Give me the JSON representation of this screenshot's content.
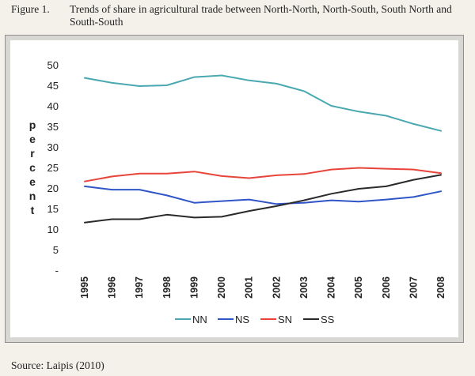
{
  "figure": {
    "label": "Figure 1.",
    "title": "Trends of share in agricultural trade between North-North, North-South, South North and South-South"
  },
  "source": "Source: Laipis (2010)",
  "chart_data": {
    "type": "line",
    "ylabel": "percent",
    "ylim": [
      0,
      50
    ],
    "yticks": [
      "-",
      "5",
      "10",
      "15",
      "20",
      "25",
      "30",
      "35",
      "40",
      "45",
      "50"
    ],
    "x": [
      "1995",
      "1996",
      "1997",
      "1998",
      "1999",
      "2000",
      "2001",
      "2002",
      "2003",
      "2004",
      "2005",
      "2006",
      "2007",
      "2008"
    ],
    "legend_position": "bottom",
    "series": [
      {
        "name": "NN",
        "color": "#4aa8b0",
        "values": [
          46.8,
          45.6,
          44.8,
          45.0,
          47.0,
          47.4,
          46.2,
          45.4,
          43.6,
          40.0,
          38.6,
          37.6,
          35.6,
          33.9
        ]
      },
      {
        "name": "NS",
        "color": "#2f55c8",
        "values": [
          20.4,
          19.6,
          19.6,
          18.2,
          16.4,
          16.8,
          17.2,
          16.1,
          16.4,
          17.0,
          16.7,
          17.2,
          17.8,
          19.2
        ]
      },
      {
        "name": "SN",
        "color": "#e8453a",
        "values": [
          21.6,
          22.8,
          23.5,
          23.5,
          24.0,
          22.9,
          22.4,
          23.1,
          23.4,
          24.5,
          24.9,
          24.7,
          24.5,
          23.6
        ]
      },
      {
        "name": "SS",
        "color": "#2a2a2a",
        "values": [
          11.6,
          12.4,
          12.4,
          13.5,
          12.8,
          13.0,
          14.4,
          15.6,
          17.0,
          18.6,
          19.8,
          20.4,
          22.0,
          23.2
        ]
      }
    ]
  }
}
